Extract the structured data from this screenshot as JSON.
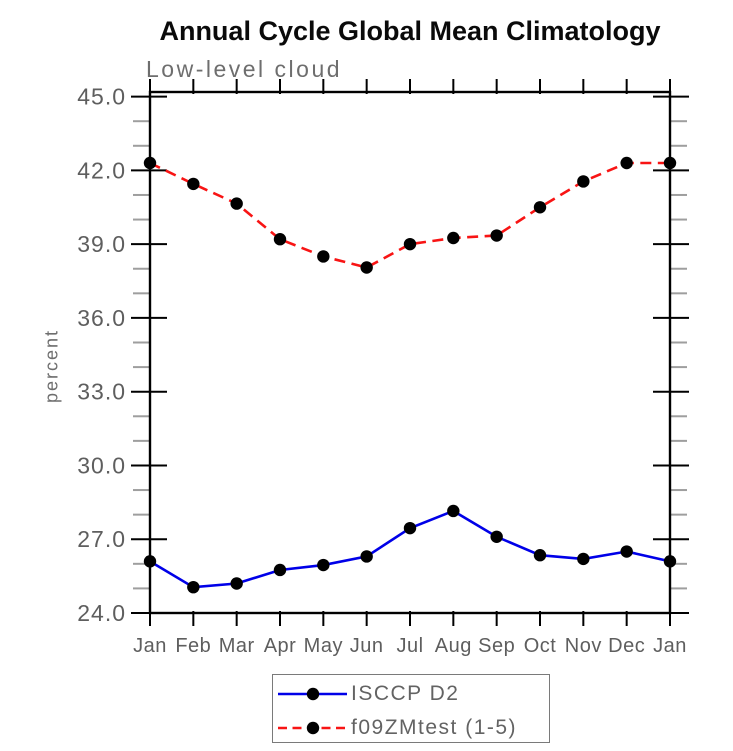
{
  "chart_data": {
    "type": "line",
    "title": "Annual Cycle Global Mean Climatology",
    "subtitle": "Low-level cloud",
    "ylabel": "percent",
    "xlabel": "",
    "categories": [
      "Jan",
      "Feb",
      "Mar",
      "Apr",
      "May",
      "Jun",
      "Jul",
      "Aug",
      "Sep",
      "Oct",
      "Nov",
      "Dec",
      "Jan"
    ],
    "ylim": [
      24.0,
      45.0
    ],
    "y_major_ticks": [
      24,
      27,
      30,
      33,
      36,
      39,
      42,
      45
    ],
    "y_tick_labels": [
      "24.0",
      "27.0",
      "30.0",
      "33.0",
      "36.0",
      "39.0",
      "42.0",
      "45.0"
    ],
    "y_minor_step": 1.0,
    "grid": false,
    "legend_position": "bottom-center",
    "series": [
      {
        "name": "ISCCP D2",
        "color": "#0000e8",
        "line_style": "solid",
        "marker": "filled-circle",
        "marker_color": "#000000",
        "values": [
          26.1,
          25.05,
          25.2,
          25.75,
          25.95,
          26.3,
          27.45,
          28.15,
          27.1,
          26.35,
          26.2,
          26.5,
          26.1
        ]
      },
      {
        "name": "f09ZMtest (1-5)",
        "color": "#f81414",
        "line_style": "dashed",
        "marker": "filled-circle",
        "marker_color": "#000000",
        "values": [
          42.3,
          41.45,
          40.65,
          39.2,
          38.5,
          38.05,
          39.0,
          39.25,
          39.35,
          40.5,
          41.55,
          42.3,
          42.3
        ]
      }
    ],
    "colors": {
      "title": "#0a0a0a",
      "subtitle": "#6e6e6e",
      "tick_label": "#5e5e5e",
      "axis": "#000000",
      "minor_tick": "#9e9e9e",
      "legend_text": "#636363",
      "legend_border": "#7a7a7a",
      "background": "#ffffff"
    }
  }
}
